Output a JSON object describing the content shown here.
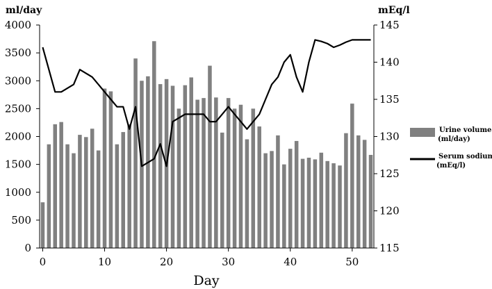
{
  "chart_data": {
    "type": "bar",
    "title": "",
    "xlabel": "Day",
    "ylabel_left_unit": "ml/day",
    "ylabel_right_unit": "mEq/l",
    "x_ticks": [
      "0",
      "10",
      "20",
      "30",
      "40",
      "50"
    ],
    "xlim": [
      -0.5,
      53.5
    ],
    "ylim_left": [
      0,
      4000
    ],
    "ylim_right": [
      115,
      145
    ],
    "y_ticks_left": [
      "0",
      "500",
      "1000",
      "1500",
      "2000",
      "2500",
      "3000",
      "3500",
      "4000"
    ],
    "y_ticks_right": [
      "115",
      "120",
      "125",
      "130",
      "135",
      "140",
      "145"
    ],
    "grid": false,
    "legend_position": "right",
    "colors": {
      "bars": "#808080",
      "line": "#000000"
    },
    "series": [
      {
        "name": "Urine volume",
        "unit_label": "(ml/day)",
        "type": "bar",
        "axis": "left",
        "x": [
          0,
          1,
          2,
          3,
          4,
          5,
          6,
          7,
          8,
          9,
          10,
          11,
          12,
          13,
          14,
          15,
          16,
          17,
          18,
          19,
          20,
          21,
          22,
          23,
          24,
          25,
          26,
          27,
          28,
          29,
          30,
          31,
          32,
          33,
          34,
          35,
          36,
          37,
          38,
          39,
          40,
          41,
          42,
          43,
          44,
          45,
          46,
          47,
          48,
          49,
          50,
          51,
          52,
          53
        ],
        "values": [
          820,
          1860,
          2220,
          2260,
          1860,
          1700,
          2030,
          1990,
          2140,
          1750,
          2860,
          2810,
          1860,
          2080,
          2220,
          3400,
          3000,
          3080,
          3710,
          2940,
          3030,
          2910,
          2500,
          2920,
          3060,
          2660,
          2690,
          3270,
          2700,
          2070,
          2690,
          2500,
          2570,
          1950,
          2500,
          2180,
          1700,
          1740,
          2020,
          1500,
          1780,
          1920,
          1600,
          1620,
          1590,
          1710,
          1560,
          1520,
          1480,
          2060,
          2590,
          2020,
          1940,
          1670
        ]
      },
      {
        "name": "Serum sodium",
        "unit_label": "(mEq/l)",
        "type": "line",
        "axis": "right",
        "x": [
          0,
          1,
          2,
          3,
          4,
          5,
          6,
          7,
          8,
          9,
          10,
          11,
          12,
          13,
          14,
          15,
          16,
          17,
          18,
          19,
          20,
          21,
          22,
          23,
          24,
          25,
          26,
          27,
          28,
          29,
          30,
          31,
          32,
          33,
          34,
          35,
          36,
          37,
          38,
          39,
          40,
          41,
          42,
          43,
          44,
          45,
          46,
          47,
          48,
          49,
          50,
          51,
          52,
          53
        ],
        "values": [
          142,
          139,
          136,
          136,
          136.5,
          137,
          139,
          138.5,
          138,
          137,
          136,
          135,
          134,
          134,
          131,
          134,
          126,
          126.5,
          127,
          129,
          126,
          132,
          132.5,
          133,
          133,
          133,
          133,
          132,
          132,
          133,
          134,
          133,
          132,
          131,
          132,
          133,
          135,
          137,
          138,
          140,
          141,
          138,
          136,
          140,
          143,
          142.8,
          142.5,
          142,
          142.3,
          142.7,
          143,
          143,
          143,
          143
        ]
      }
    ]
  }
}
